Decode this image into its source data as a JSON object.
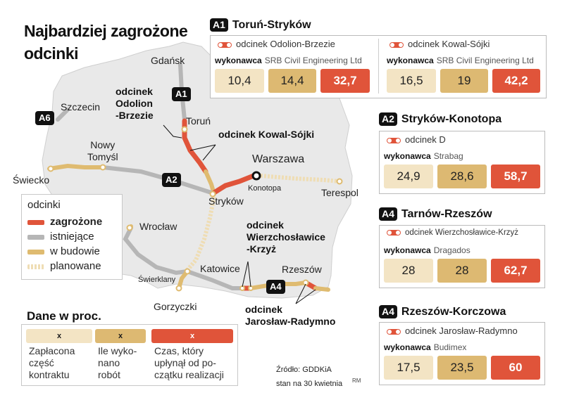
{
  "title": {
    "line1": "Najbardziej zagrożone",
    "line2": "odcinki"
  },
  "colors": {
    "zagrozone": "#e0543a",
    "istniejace": "#b6b6b6",
    "w_budowie": "#dfbb70",
    "planowane": "#efddb4",
    "map_fill": "#e9e9e9"
  },
  "cities": [
    {
      "id": "gdansk",
      "name": "Gdańsk"
    },
    {
      "id": "szczecin",
      "name": "Szczecin"
    },
    {
      "id": "torun",
      "name": "Toruń"
    },
    {
      "id": "nowy-tomysl",
      "name": "Nowy\nTomyśl"
    },
    {
      "id": "warszawa",
      "name": "Warszawa"
    },
    {
      "id": "swiecko",
      "name": "Świecko"
    },
    {
      "id": "konotopa",
      "name": "Konotopa"
    },
    {
      "id": "terespol",
      "name": "Terespol"
    },
    {
      "id": "strykow",
      "name": "Stryków"
    },
    {
      "id": "wroclaw",
      "name": "Wrocław"
    },
    {
      "id": "katowice",
      "name": "Katowice"
    },
    {
      "id": "rzeszow",
      "name": "Rzeszów"
    },
    {
      "id": "swierklany",
      "name": "Świerklany"
    },
    {
      "id": "gorzyczki",
      "name": "Gorzyczki"
    }
  ],
  "road_tags": {
    "a1": "A1",
    "a2": "A2",
    "a4": "A4",
    "a6": "A6"
  },
  "section_labels": {
    "odolion": "odcinek\nOdolion\n-Brzezie",
    "kowal": "odcinek Kowal-Sójki",
    "wierzch": "odcinek\nWierzchosławice\n-Krzyż",
    "jaroslaw": "odcinek\nJarosław-Radymno"
  },
  "legend": {
    "title": "odcinki",
    "items": [
      {
        "label": "zagrożone",
        "color": "#e0543a",
        "bold": true
      },
      {
        "label": "istniejące",
        "color": "#b6b6b6"
      },
      {
        "label": "w budowie",
        "color": "#dfbb70"
      },
      {
        "label": "planowane",
        "color": "#efddb4"
      }
    ]
  },
  "dane": {
    "title": "Dane w proc.",
    "swatch_mark": "x",
    "items": [
      {
        "label": "Zapłacona\nczęść\nkontraktu"
      },
      {
        "label": "Ile wyko-\nnano\nrobót"
      },
      {
        "label": "Czas, który\nupłynął od po-\nczątku realizacji"
      }
    ]
  },
  "source": {
    "line1": "Źródło: GDDKiA",
    "line2": "stan na 30 kwietnia",
    "author": "RM"
  },
  "wykonawca_label": "wykonawca",
  "chart_data": {
    "type": "table",
    "title": "Najbardziej zagrożone odcinki",
    "columns": [
      "Zapłacona część kontraktu",
      "Ile wykonano robót",
      "Czas, który upłynął od początku realizacji"
    ],
    "unit": "%",
    "panels": [
      {
        "road": "A1",
        "name": "Toruń-Stryków",
        "sections": [
          {
            "name": "odcinek Odolion-Brzezie",
            "contractor": "SRB Civil Engineering Ltd",
            "values": [
              "10,4",
              "14,4",
              "32,7"
            ]
          },
          {
            "name": "odcinek Kowal-Sójki",
            "contractor": "SRB Civil Engineering Ltd",
            "values": [
              "16,5",
              "19",
              "42,2"
            ]
          }
        ]
      },
      {
        "road": "A2",
        "name": "Stryków-Konotopa",
        "sections": [
          {
            "name": "odcinek D",
            "contractor": "Strabag",
            "values": [
              "24,9",
              "28,6",
              "58,7"
            ]
          }
        ]
      },
      {
        "road": "A4",
        "name": "Tarnów-Rzeszów",
        "sections": [
          {
            "name": "odcinek Wierzchosławice-Krzyż",
            "contractor": "Dragados",
            "values": [
              "28",
              "28",
              "62,7"
            ]
          }
        ]
      },
      {
        "road": "A4",
        "name": "Rzeszów-Korczowa",
        "sections": [
          {
            "name": "odcinek Jarosław-Radymno",
            "contractor": "Budimex",
            "values": [
              "17,5",
              "23,5",
              "60"
            ]
          }
        ]
      }
    ]
  }
}
